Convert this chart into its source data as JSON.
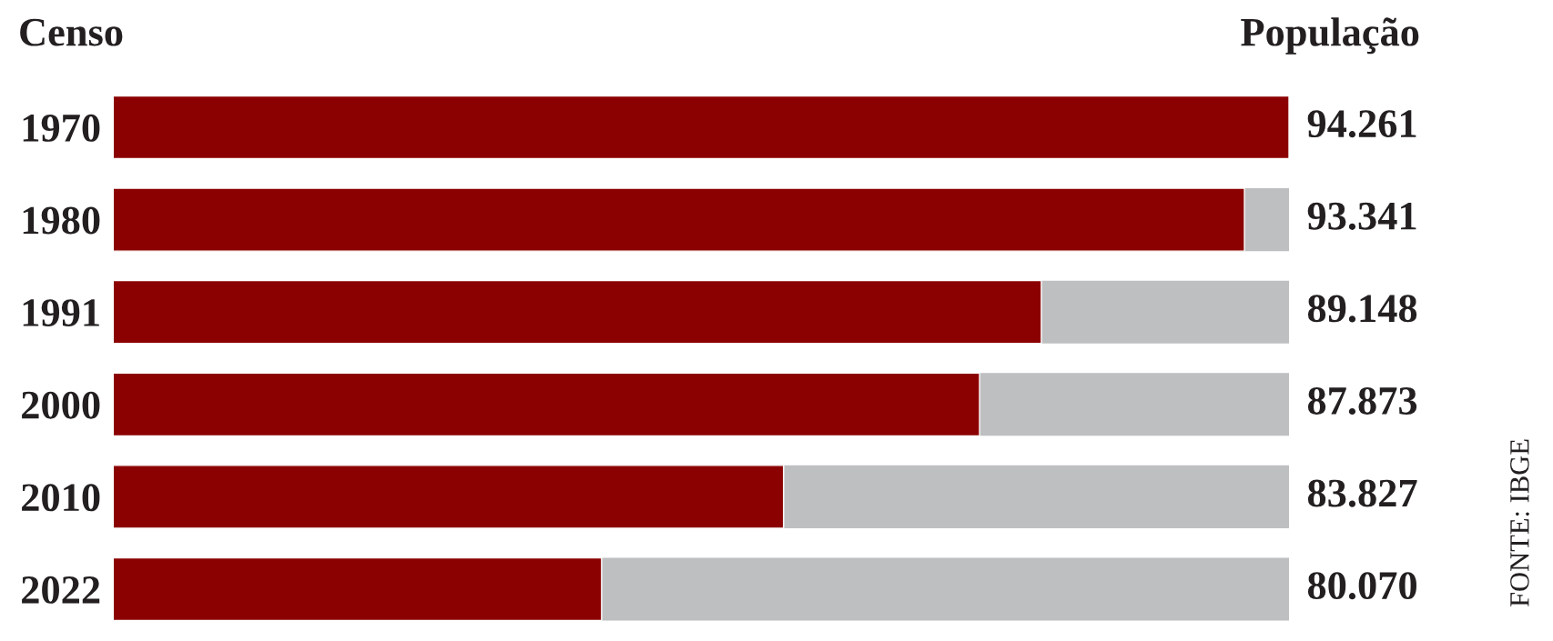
{
  "chart_data": {
    "type": "bar",
    "orientation": "horizontal",
    "ylabel": "Censo",
    "xlabel": "População",
    "annotations": [
      "FONTE: IBGE"
    ],
    "categories": [
      "1970",
      "1980",
      "1991",
      "2000",
      "2010",
      "2022"
    ],
    "values": [
      94.261,
      93.341,
      89.148,
      87.873,
      83.827,
      80.07
    ],
    "value_labels": [
      "94.261",
      "93.341",
      "89.148",
      "87.873",
      "83.827",
      "80.070"
    ],
    "color": "#8b0000",
    "xlim": [
      70,
      94.261
    ],
    "tick_labels": "y"
  }
}
